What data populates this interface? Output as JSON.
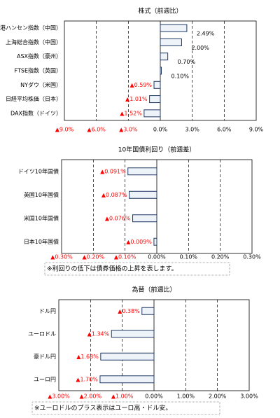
{
  "chart_data": [
    {
      "type": "bar",
      "orientation": "horizontal",
      "title": "株式（前週比）",
      "categories": [
        "香港ハンセン指数（中国）",
        "上海総合指数（中国）",
        "ASX指数（豪州）",
        "FTSE指数（英国）",
        "NYダウ（米国）",
        "日経平均株価（日本）",
        "DAX指数（ドイツ）"
      ],
      "values": [
        2.49,
        2.0,
        0.7,
        0.1,
        -0.59,
        -1.01,
        -1.52
      ],
      "value_labels": [
        "2.49%",
        "2.00%",
        "0.70%",
        "0.10%",
        "▲0.59%",
        "▲1.01%",
        "▲1.52%"
      ],
      "xlim": [
        -9,
        9
      ],
      "xticks": [
        {
          "value": -9,
          "label": "▲9.0%"
        },
        {
          "value": -6,
          "label": "▲6.0%"
        },
        {
          "value": -3,
          "label": "▲3.0%"
        },
        {
          "value": 0,
          "label": "0.0%"
        },
        {
          "value": 3,
          "label": "3.0%"
        },
        {
          "value": 6,
          "label": "6.0%"
        },
        {
          "value": 9,
          "label": "9.0%"
        }
      ],
      "grid": true,
      "color": "#eef3fa",
      "edge_color": "#1f3864",
      "negative_color": "#ff0000"
    },
    {
      "type": "bar",
      "orientation": "horizontal",
      "title": "10年国債利回り（前週差）",
      "categories": [
        "ドイツ10年国債",
        "英国10年国債",
        "米国10年国債",
        "日本10年国債"
      ],
      "values": [
        -0.091,
        -0.087,
        -0.076,
        -0.009
      ],
      "value_labels": [
        "▲0.091%",
        "▲0.087%",
        "▲0.076%",
        "▲0.009%"
      ],
      "xlim": [
        -0.3,
        0.3
      ],
      "xticks": [
        {
          "value": -0.3,
          "label": "▲0.30%"
        },
        {
          "value": -0.2,
          "label": "▲0.20%"
        },
        {
          "value": -0.1,
          "label": "▲0.10%"
        },
        {
          "value": 0,
          "label": "0.00%"
        },
        {
          "value": 0.1,
          "label": "0.10%"
        },
        {
          "value": 0.2,
          "label": "0.20%"
        },
        {
          "value": 0.3,
          "label": "0.30%"
        }
      ],
      "grid": true,
      "color": "#eef3fa",
      "edge_color": "#1f3864",
      "negative_color": "#ff0000",
      "note": "※利回りの低下は債券価格の上昇を表します。"
    },
    {
      "type": "bar",
      "orientation": "horizontal",
      "title": "為替（前週比）",
      "categories": [
        "ドル円",
        "ユーロドル",
        "豪ドル円",
        "ユーロ円"
      ],
      "values": [
        -0.38,
        -1.34,
        -1.68,
        -1.7
      ],
      "value_labels": [
        "▲0.38%",
        "▲1.34%",
        "▲1.68%",
        "▲1.70%"
      ],
      "xlim": [
        -3,
        3
      ],
      "xticks": [
        {
          "value": -3,
          "label": "▲3.00%"
        },
        {
          "value": -2,
          "label": "▲2.00%"
        },
        {
          "value": -1,
          "label": "▲1.00%"
        },
        {
          "value": 0,
          "label": "0.00%"
        },
        {
          "value": 1,
          "label": "1.00%"
        },
        {
          "value": 2,
          "label": "2.00%"
        },
        {
          "value": 3,
          "label": "3.00%"
        }
      ],
      "grid": true,
      "color": "#eef3fa",
      "edge_color": "#1f3864",
      "negative_color": "#ff0000",
      "note": "※ユーロドルのプラス表示はユーロ高・ドル安。"
    }
  ]
}
